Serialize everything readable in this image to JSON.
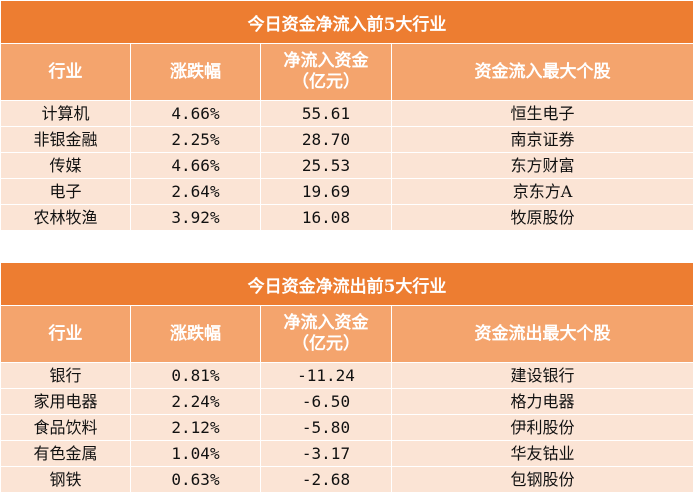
{
  "inflow": {
    "title": "今日资金净流入前5大行业",
    "headers": [
      "行业",
      "涨跌幅",
      "净流入资金\n（亿元）",
      "资金流入最大个股"
    ],
    "rows": [
      [
        "计算机",
        "4.66%",
        "55.61",
        "恒生电子"
      ],
      [
        "非银金融",
        "2.25%",
        "28.70",
        "南京证券"
      ],
      [
        "传媒",
        "4.66%",
        "25.53",
        "东方财富"
      ],
      [
        "电子",
        "2.64%",
        "19.69",
        "京东方A"
      ],
      [
        "农林牧渔",
        "3.92%",
        "16.08",
        "牧原股份"
      ]
    ]
  },
  "outflow": {
    "title": "今日资金净流出前5大行业",
    "headers": [
      "行业",
      "涨跌幅",
      "净流入资金\n（亿元）",
      "资金流出最大个股"
    ],
    "rows": [
      [
        "银行",
        "0.81%",
        "-11.24",
        "建设银行"
      ],
      [
        "家用电器",
        "2.24%",
        "-6.50",
        "格力电器"
      ],
      [
        "食品饮料",
        "2.12%",
        "-5.80",
        "伊利股份"
      ],
      [
        "有色金属",
        "1.04%",
        "-3.17",
        "华友钴业"
      ],
      [
        "钢铁",
        "0.63%",
        "-2.68",
        "包钢股份"
      ]
    ]
  },
  "colors": {
    "title_bg": "#ed7d31",
    "header_bg": "#f4a46d",
    "row_bg": "#fbe4d5",
    "header_text": "#ffffff"
  }
}
